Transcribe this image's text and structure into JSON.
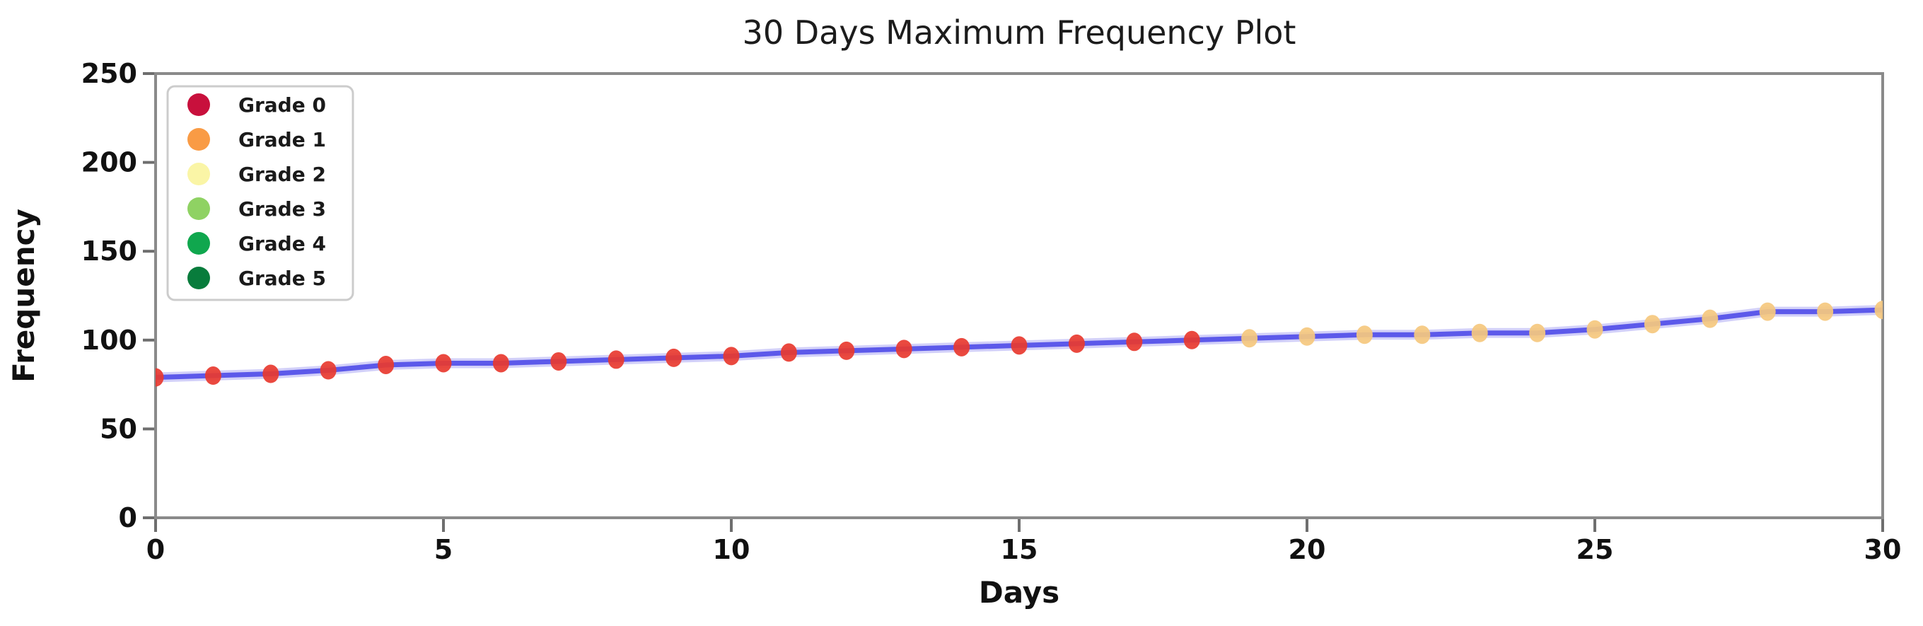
{
  "figure": {
    "background": "#ffffff"
  },
  "chart_data": {
    "type": "line",
    "title": "30 Days Maximum Frequency Plot",
    "xlabel": "Days",
    "ylabel": "Frequency",
    "x": [
      0,
      1,
      2,
      3,
      4,
      5,
      6,
      7,
      8,
      9,
      10,
      11,
      12,
      13,
      14,
      15,
      16,
      17,
      18,
      19,
      20,
      21,
      22,
      23,
      24,
      25,
      26,
      27,
      28,
      29,
      30
    ],
    "series": [
      {
        "name": "30-day maximum frequency",
        "values": [
          79,
          80,
          81,
          83,
          86,
          87,
          87,
          88,
          89,
          90,
          91,
          93,
          94,
          95,
          96,
          97,
          98,
          99,
          100,
          101,
          102,
          103,
          103,
          104,
          104,
          106,
          109,
          112,
          116,
          116,
          117
        ]
      }
    ],
    "xlim": [
      0,
      30
    ],
    "ylim": [
      0,
      250
    ],
    "xticks": [
      0,
      5,
      10,
      15,
      20,
      25,
      30
    ],
    "yticks": [
      0,
      50,
      100,
      150,
      200,
      250
    ],
    "grid": false,
    "legend_position": "upper-left",
    "line_color": "#4F4BE8",
    "line_halo_color": "#9B97F2",
    "point_grades": [
      0,
      0,
      0,
      0,
      0,
      0,
      0,
      0,
      0,
      0,
      0,
      0,
      0,
      0,
      0,
      0,
      0,
      0,
      0,
      1,
      1,
      1,
      1,
      1,
      1,
      1,
      1,
      1,
      1,
      1,
      1
    ],
    "marker_colors": {
      "0": "#E8392F",
      "1": "#F5C87E"
    },
    "legend": [
      {
        "label": "Grade 0",
        "color": "#C8103C"
      },
      {
        "label": "Grade 1",
        "color": "#F99B45"
      },
      {
        "label": "Grade 2",
        "color": "#FAF5A6"
      },
      {
        "label": "Grade 3",
        "color": "#8FD263"
      },
      {
        "label": "Grade 4",
        "color": "#10A74E"
      },
      {
        "label": "Grade 5",
        "color": "#087C3C"
      }
    ],
    "spine_color": "#8A8A8A",
    "tick_color": "#6E6E6E"
  }
}
